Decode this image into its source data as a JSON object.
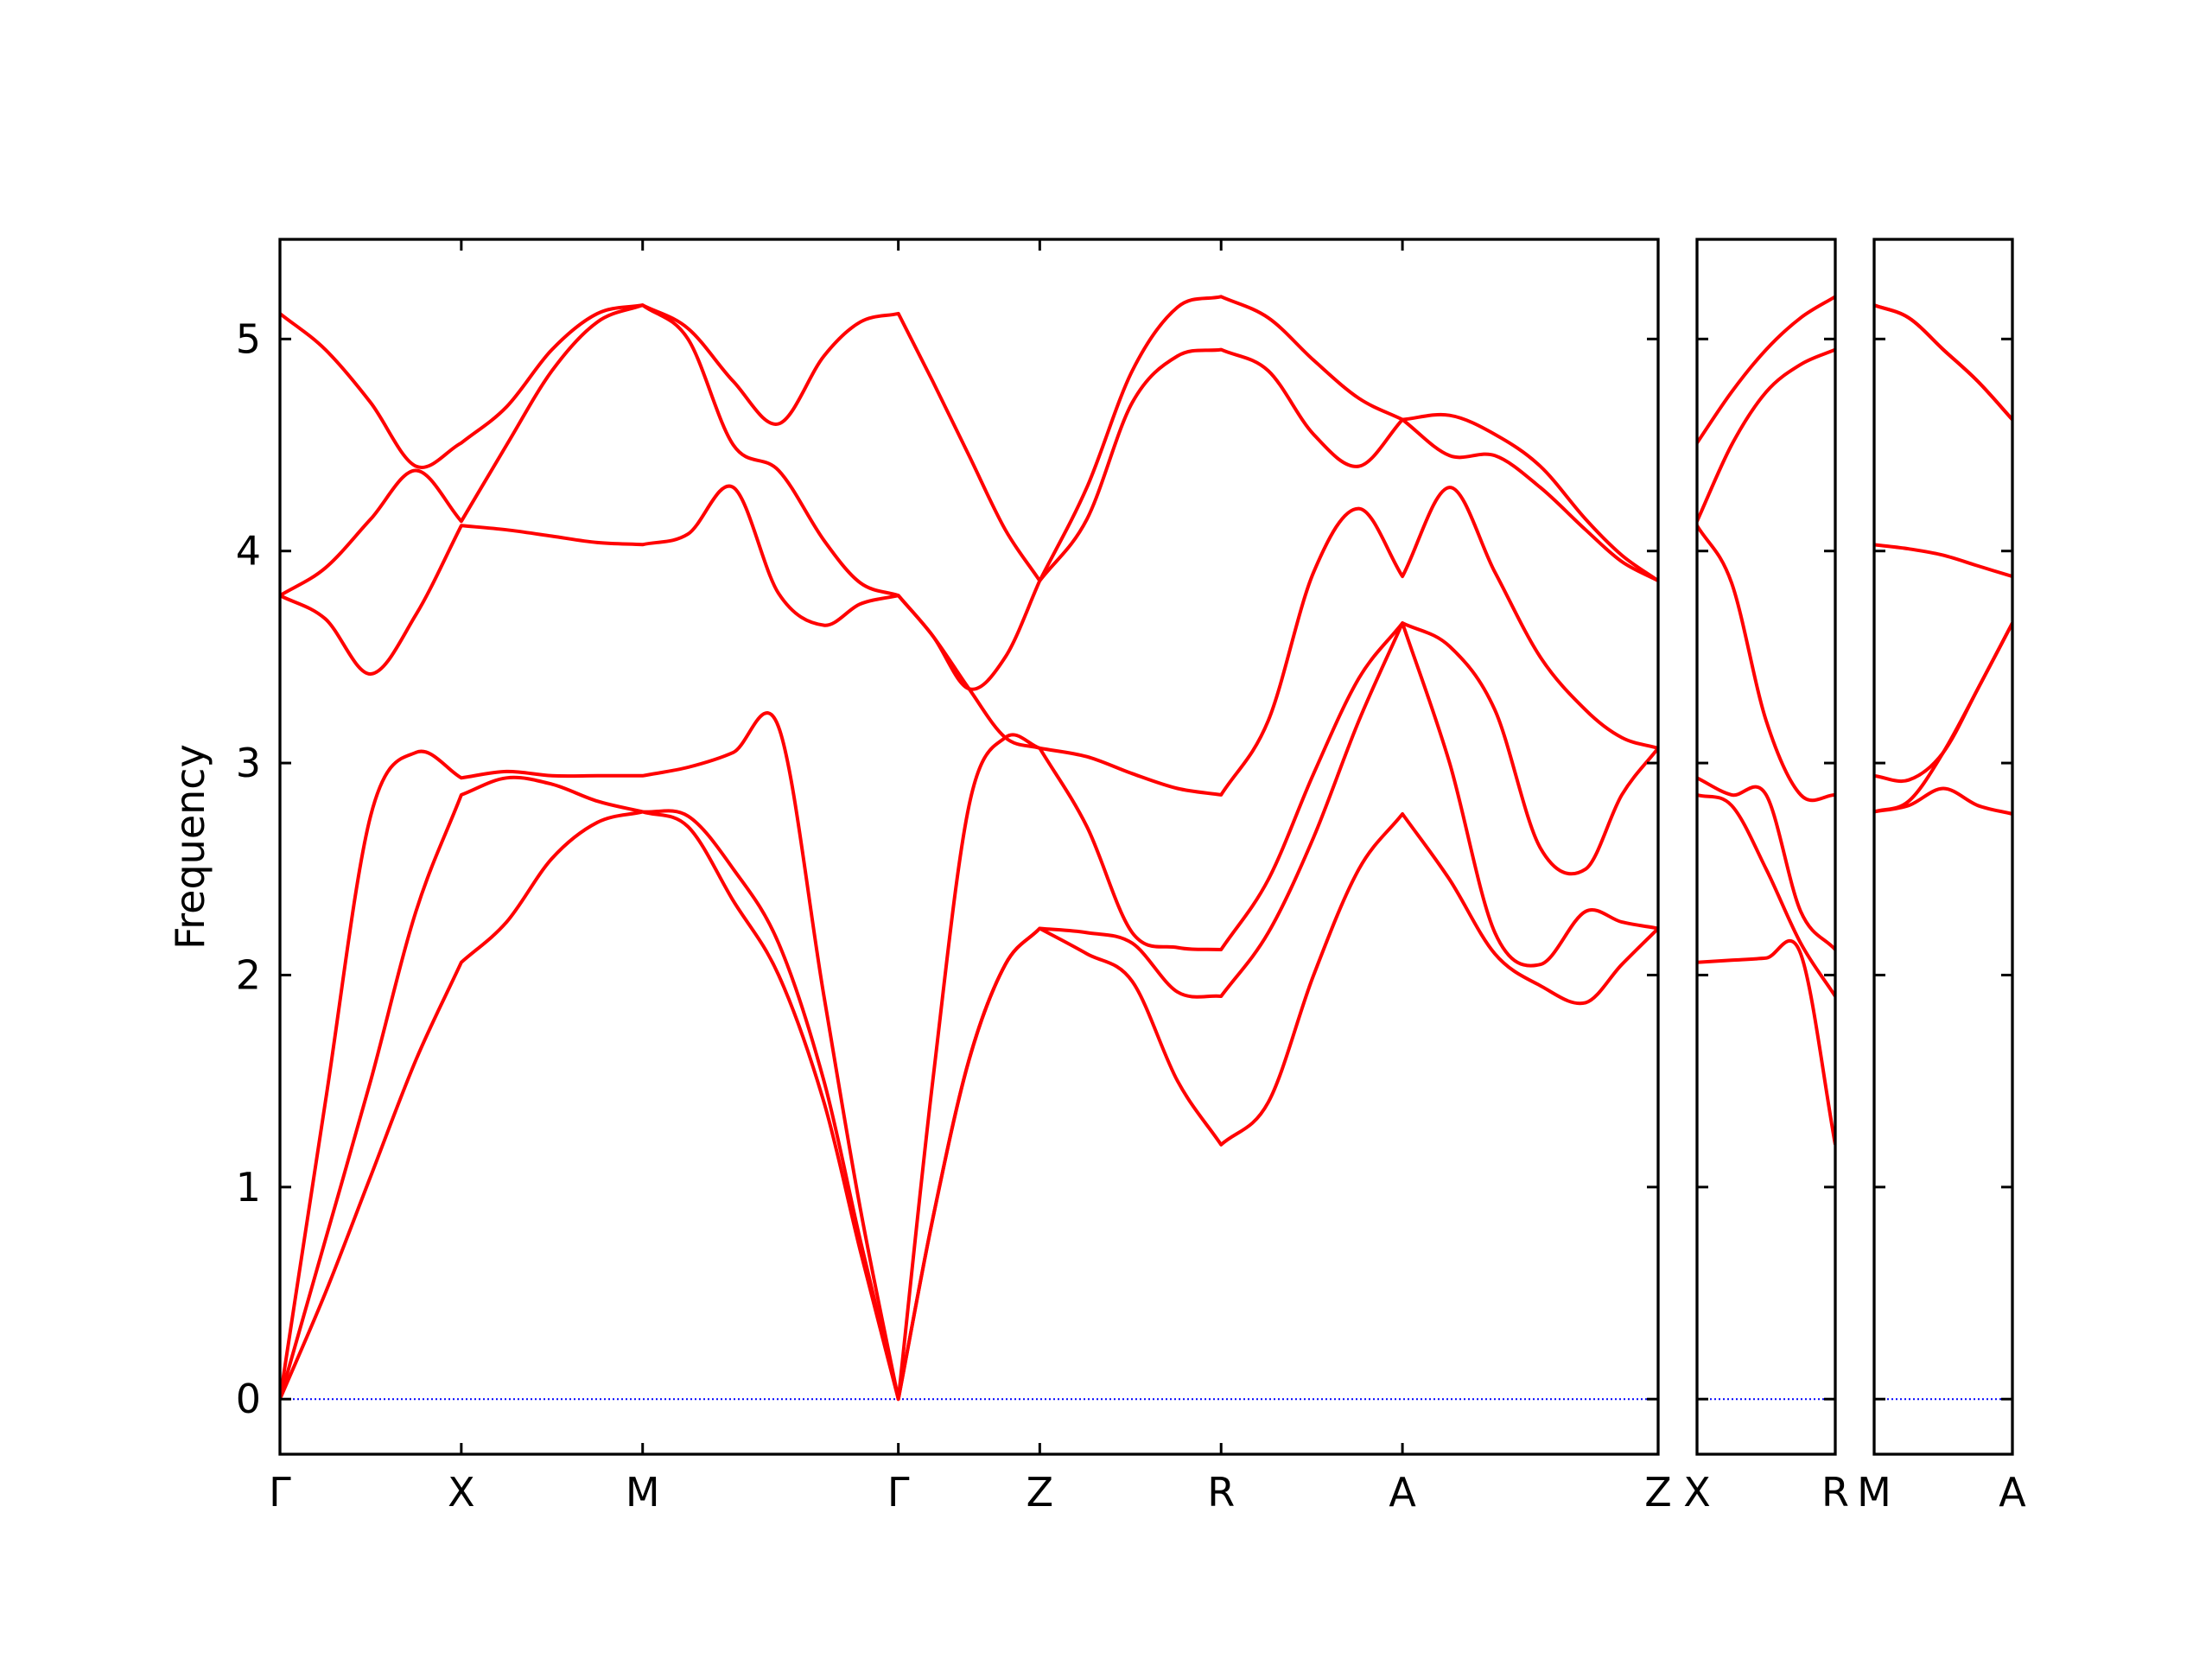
{
  "chart_data": [
    {
      "type": "line",
      "ylabel": "Frequency",
      "x": [
        0,
        0.25,
        0.5,
        0.75,
        1,
        1.25,
        1.5,
        1.75,
        2,
        2.25,
        2.5,
        2.75,
        3,
        3.2,
        3.41,
        3.6,
        3.8,
        4,
        4.19,
        4.45,
        4.7,
        4.95,
        5.19,
        5.45,
        5.7,
        5.95,
        6.19,
        6.45,
        6.7,
        6.95,
        7.2,
        7.4,
        7.6
      ],
      "xlim": [
        0,
        7.6
      ],
      "xticks": [
        {
          "value": 0,
          "label": "Γ"
        },
        {
          "value": 1,
          "label": "X"
        },
        {
          "value": 2,
          "label": "M"
        },
        {
          "value": 3.41,
          "label": "Γ"
        },
        {
          "value": 4.19,
          "label": "Z"
        },
        {
          "value": 5.19,
          "label": "R"
        },
        {
          "value": 6.19,
          "label": "A"
        },
        {
          "value": 7.6,
          "label": "Z"
        }
      ],
      "ylim": [
        -0.26,
        5.47
      ],
      "yticks": [
        0,
        1,
        2,
        3,
        4,
        5
      ],
      "show_ytick_labels": true,
      "reference_line": {
        "y": 0,
        "color": "#0000ff",
        "style": "dotted"
      },
      "series": [
        {
          "color": "#ff0000",
          "values": [
            0,
            0.5,
            1.05,
            1.6,
            2.06,
            2.25,
            2.55,
            2.72,
            2.77,
            2.7,
            2.35,
            2.0,
            1.4,
            0.7,
            0,
            0.85,
            1.6,
            2.05,
            2.22,
            2.1,
            1.97,
            1.5,
            1.2,
            1.4,
            2.0,
            2.5,
            2.76,
            2.45,
            2.1,
            1.95,
            1.87,
            2.05,
            2.22
          ]
        },
        {
          "color": "#ff0000",
          "values": [
            0,
            0.75,
            1.5,
            2.3,
            2.85,
            2.93,
            2.9,
            2.82,
            2.77,
            2.75,
            2.5,
            2.15,
            1.5,
            0.75,
            0,
            0.85,
            1.6,
            2.05,
            2.22,
            2.2,
            2.15,
            1.92,
            1.9,
            2.2,
            2.65,
            3.2,
            3.66,
            3.0,
            2.2,
            2.05,
            2.3,
            2.25,
            2.22
          ]
        },
        {
          "color": "#ff0000",
          "values": [
            0,
            1.4,
            2.75,
            3.05,
            2.93,
            2.96,
            2.94,
            2.94,
            2.94,
            2.98,
            3.05,
            3.17,
            1.9,
            0.9,
            0,
            1.5,
            2.8,
            3.12,
            3.07,
            2.7,
            2.2,
            2.13,
            2.12,
            2.45,
            2.95,
            3.4,
            3.66,
            3.55,
            3.25,
            2.6,
            2.5,
            2.85,
            3.07
          ]
        },
        {
          "color": "#ff0000",
          "values": [
            3.79,
            3.68,
            3.42,
            3.7,
            4.12,
            4.1,
            4.07,
            4.04,
            4.03,
            4.08,
            4.3,
            3.8,
            3.65,
            3.75,
            3.79,
            3.6,
            3.35,
            3.12,
            3.07,
            3.03,
            2.95,
            2.88,
            2.85,
            3.2,
            3.9,
            4.2,
            3.88,
            4.3,
            3.9,
            3.5,
            3.25,
            3.12,
            3.07
          ]
        },
        {
          "color": "#ff0000",
          "values": [
            3.79,
            3.92,
            4.15,
            4.38,
            4.14,
            4.5,
            4.85,
            5.08,
            5.16,
            5.0,
            4.5,
            4.38,
            4.05,
            3.85,
            3.79,
            3.6,
            3.35,
            3.5,
            3.86,
            4.15,
            4.7,
            4.92,
            4.95,
            4.85,
            4.55,
            4.4,
            4.62,
            4.45,
            4.45,
            4.3,
            4.1,
            3.95,
            3.86
          ]
        },
        {
          "color": "#ff0000",
          "values": [
            5.12,
            4.95,
            4.7,
            4.4,
            4.51,
            4.68,
            4.95,
            5.12,
            5.16,
            5.05,
            4.8,
            4.6,
            4.92,
            5.08,
            5.12,
            4.8,
            4.45,
            4.1,
            3.86,
            4.3,
            4.85,
            5.15,
            5.2,
            5.1,
            4.9,
            4.72,
            4.62,
            4.64,
            4.55,
            4.4,
            4.15,
            3.98,
            3.86
          ]
        }
      ]
    },
    {
      "type": "line",
      "x": [
        0,
        0.19,
        0.38,
        0.57,
        0.76
      ],
      "xlim": [
        0,
        0.76
      ],
      "xticks": [
        {
          "value": 0,
          "label": "X"
        },
        {
          "value": 0.76,
          "label": "R"
        }
      ],
      "ylim": [
        -0.26,
        5.47
      ],
      "yticks": [
        0,
        1,
        2,
        3,
        4,
        5
      ],
      "show_ytick_labels": false,
      "reference_line": {
        "y": 0,
        "color": "#0000ff",
        "style": "dotted"
      },
      "series": [
        {
          "color": "#ff0000",
          "values": [
            2.06,
            2.07,
            2.08,
            2.1,
            1.2
          ]
        },
        {
          "color": "#ff0000",
          "values": [
            2.85,
            2.8,
            2.5,
            2.15,
            1.9
          ]
        },
        {
          "color": "#ff0000",
          "values": [
            2.93,
            2.85,
            2.85,
            2.3,
            2.12
          ]
        },
        {
          "color": "#ff0000",
          "values": [
            4.12,
            3.85,
            3.2,
            2.85,
            2.85
          ]
        },
        {
          "color": "#ff0000",
          "values": [
            4.14,
            4.5,
            4.75,
            4.88,
            4.95
          ]
        },
        {
          "color": "#ff0000",
          "values": [
            4.51,
            4.75,
            4.95,
            5.1,
            5.2
          ]
        }
      ]
    },
    {
      "type": "line",
      "x": [
        0,
        0.19,
        0.38,
        0.57,
        0.76
      ],
      "xlim": [
        0,
        0.76
      ],
      "xticks": [
        {
          "value": 0,
          "label": "M"
        },
        {
          "value": 0.76,
          "label": "A"
        }
      ],
      "ylim": [
        -0.26,
        5.47
      ],
      "yticks": [
        0,
        1,
        2,
        3,
        4,
        5
      ],
      "show_ytick_labels": false,
      "reference_line": {
        "y": 0,
        "color": "#0000ff",
        "style": "dotted"
      },
      "series": [
        {
          "color": "#ff0000",
          "values": [
            2.77,
            2.8,
            2.88,
            2.8,
            2.76
          ]
        },
        {
          "color": "#ff0000",
          "values": [
            2.77,
            2.82,
            3.05,
            3.35,
            3.66
          ]
        },
        {
          "color": "#ff0000",
          "values": [
            2.94,
            2.92,
            3.05,
            3.35,
            3.66
          ]
        },
        {
          "color": "#ff0000",
          "values": [
            4.03,
            4.01,
            3.98,
            3.93,
            3.88
          ]
        },
        {
          "color": "#ff0000",
          "values": [
            5.16,
            5.1,
            4.95,
            4.8,
            4.62
          ]
        },
        {
          "color": "#ff0000",
          "values": [
            5.16,
            5.1,
            4.95,
            4.8,
            4.62
          ]
        }
      ]
    }
  ]
}
